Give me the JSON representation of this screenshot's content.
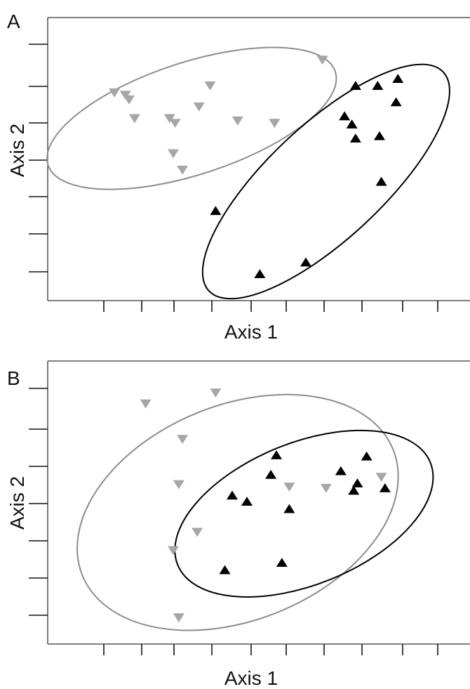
{
  "chart_data": [
    {
      "type": "scatter",
      "panel_label": "A",
      "xlabel": "Axis 1",
      "ylabel": "Axis 2",
      "xlim": [
        0,
        10
      ],
      "ylim": [
        0,
        10
      ],
      "x_ticks": 10,
      "y_ticks": 7,
      "grid": false,
      "series": [
        {
          "group": "gray-down-triangle",
          "marker": "triangle-down",
          "color": "#a6a6a6",
          "points": [
            [
              1.2,
              7.9
            ],
            [
              1.5,
              7.8
            ],
            [
              1.6,
              7.6
            ],
            [
              1.75,
              6.8
            ],
            [
              2.7,
              6.8
            ],
            [
              2.85,
              6.6
            ],
            [
              2.8,
              5.3
            ],
            [
              3.05,
              4.6
            ],
            [
              3.5,
              7.3
            ],
            [
              3.8,
              8.2
            ],
            [
              4.55,
              6.7
            ],
            [
              5.55,
              6.6
            ],
            [
              6.85,
              9.3
            ]
          ]
        },
        {
          "group": "black-up-triangle",
          "marker": "triangle-up",
          "color": "#000000",
          "points": [
            [
              7.75,
              8.2
            ],
            [
              8.35,
              8.2
            ],
            [
              8.9,
              8.5
            ],
            [
              8.85,
              7.5
            ],
            [
              7.45,
              6.9
            ],
            [
              7.65,
              6.55
            ],
            [
              7.75,
              5.95
            ],
            [
              8.4,
              6.05
            ],
            [
              8.45,
              4.1
            ],
            [
              3.95,
              2.85
            ],
            [
              6.4,
              0.65
            ],
            [
              5.15,
              0.15
            ]
          ]
        }
      ],
      "ellipses": [
        {
          "cx": 3.3,
          "cy": 6.8,
          "rx": 4.1,
          "ry": 2.4,
          "angle_deg": -18,
          "color": "#8c8c8c"
        },
        {
          "cx": 6.95,
          "cy": 4.1,
          "rx": 4.35,
          "ry": 2.45,
          "angle_deg": -43,
          "color": "#000000"
        }
      ]
    },
    {
      "type": "scatter",
      "panel_label": "B",
      "xlabel": "Axis 1",
      "ylabel": "Axis 2",
      "xlim": [
        0,
        10
      ],
      "ylim": [
        0,
        10
      ],
      "x_ticks": 10,
      "y_ticks": 7,
      "grid": false,
      "series": [
        {
          "group": "gray-down-triangle",
          "marker": "triangle-down",
          "color": "#a6a6a6",
          "points": [
            [
              2.05,
              9.0
            ],
            [
              3.95,
              9.45
            ],
            [
              3.05,
              7.55
            ],
            [
              2.95,
              5.7
            ],
            [
              2.8,
              3.0
            ],
            [
              3.45,
              3.75
            ],
            [
              5.95,
              5.6
            ],
            [
              6.95,
              5.55
            ],
            [
              8.45,
              6.0
            ],
            [
              2.95,
              0.25
            ]
          ]
        },
        {
          "group": "black-up-triangle",
          "marker": "triangle-up",
          "color": "#000000",
          "points": [
            [
              5.6,
              6.9
            ],
            [
              5.45,
              6.1
            ],
            [
              7.35,
              6.25
            ],
            [
              8.05,
              6.85
            ],
            [
              7.8,
              5.75
            ],
            [
              7.7,
              5.45
            ],
            [
              8.55,
              5.55
            ],
            [
              4.4,
              5.25
            ],
            [
              4.8,
              5.0
            ],
            [
              5.95,
              4.7
            ],
            [
              5.75,
              2.5
            ],
            [
              4.2,
              2.2
            ]
          ]
        }
      ],
      "ellipses": [
        {
          "cx": 4.55,
          "cy": 4.55,
          "rx": 4.55,
          "ry": 4.4,
          "angle_deg": -22,
          "color": "#8c8c8c"
        },
        {
          "cx": 6.35,
          "cy": 4.5,
          "rx": 3.7,
          "ry": 2.9,
          "angle_deg": -22,
          "color": "#000000"
        }
      ]
    }
  ]
}
